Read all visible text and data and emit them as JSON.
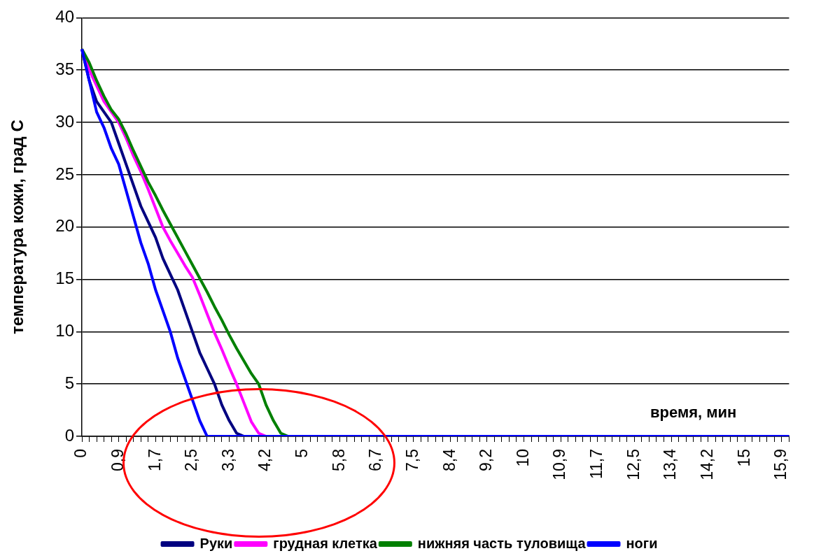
{
  "chart_data": {
    "type": "line",
    "ylabel": "температура кожи, град С",
    "xlabel": "время, мин",
    "categories": [
      "0",
      null,
      null,
      null,
      null,
      "0,9",
      null,
      null,
      null,
      null,
      "1,7",
      null,
      null,
      null,
      null,
      "2,5",
      null,
      null,
      null,
      null,
      "3,3",
      null,
      null,
      null,
      null,
      "4,2",
      null,
      null,
      null,
      null,
      "5",
      null,
      null,
      null,
      null,
      "5,8",
      null,
      null,
      null,
      null,
      "6,7",
      null,
      null,
      null,
      null,
      "7,5",
      null,
      null,
      null,
      null,
      "8,4",
      null,
      null,
      null,
      null,
      "9,2",
      null,
      null,
      null,
      null,
      "10",
      null,
      null,
      null,
      null,
      "10,9",
      null,
      null,
      null,
      null,
      "11,7",
      null,
      null,
      null,
      null,
      "12,5",
      null,
      null,
      null,
      null,
      "13,4",
      null,
      null,
      null,
      null,
      "14,2",
      null,
      null,
      null,
      null,
      "15",
      null,
      null,
      null,
      null,
      "15,9",
      null
    ],
    "series": [
      {
        "name": "Руки",
        "color": "#000080",
        "values": [
          37,
          34,
          32,
          31,
          30,
          28,
          26,
          24,
          22,
          20.5,
          19,
          17,
          15.5,
          14,
          12,
          10,
          8,
          6.5,
          5,
          3,
          1.5,
          0.3,
          0,
          null,
          null,
          null,
          null,
          null,
          null,
          null,
          null,
          null,
          null,
          null,
          null,
          null,
          null,
          null,
          null,
          null,
          null,
          null,
          null,
          null,
          null,
          null,
          null,
          null,
          null,
          null,
          null,
          null,
          null,
          null,
          null,
          null,
          null,
          null,
          null,
          null,
          null,
          null,
          null,
          null,
          null,
          null,
          null,
          null,
          null,
          null,
          null,
          null,
          null,
          null,
          null,
          null,
          null,
          null,
          null,
          null,
          null,
          null,
          null,
          null,
          null,
          null,
          null,
          null,
          null,
          null,
          null,
          null,
          null,
          null,
          null,
          null,
          null
        ]
      },
      {
        "name": "грудная клетка",
        "color": "#ff00ff",
        "values": [
          37,
          35,
          33.5,
          32,
          31,
          30,
          28.5,
          26.8,
          25.3,
          23.6,
          21.8,
          20,
          18.7,
          17.5,
          16.3,
          15.2,
          13.5,
          11.7,
          9.9,
          8.3,
          6.6,
          5,
          3.2,
          1.4,
          0.3,
          0,
          null,
          null,
          null,
          null,
          null,
          null,
          null,
          null,
          null,
          null,
          null,
          null,
          null,
          null,
          null,
          null,
          null,
          null,
          null,
          null,
          null,
          null,
          null,
          null,
          null,
          null,
          null,
          null,
          null,
          null,
          null,
          null,
          null,
          null,
          null,
          null,
          null,
          null,
          null,
          null,
          null,
          null,
          null,
          null,
          null,
          null,
          null,
          null,
          null,
          null,
          null,
          null,
          null,
          null,
          null,
          null,
          null,
          null,
          null,
          null,
          null,
          null,
          null,
          null,
          null,
          null,
          null,
          null,
          null,
          null,
          null
        ]
      },
      {
        "name": "нижняя часть туловища",
        "color": "#008000",
        "values": [
          37,
          35.7,
          34,
          32.5,
          31.2,
          30.3,
          28.9,
          27.3,
          25.8,
          24.3,
          23,
          21.6,
          20.3,
          19,
          17.7,
          16.4,
          15.1,
          13.8,
          12.4,
          11.1,
          9.7,
          8.4,
          7.2,
          6,
          5,
          3,
          1.5,
          0.3,
          0,
          null,
          null,
          null,
          null,
          null,
          null,
          null,
          null,
          null,
          null,
          null,
          null,
          null,
          null,
          null,
          null,
          null,
          null,
          null,
          null,
          null,
          null,
          null,
          null,
          null,
          null,
          null,
          null,
          null,
          null,
          null,
          null,
          null,
          null,
          null,
          null,
          null,
          null,
          null,
          null,
          null,
          null,
          null,
          null,
          null,
          null,
          null,
          null,
          null,
          null,
          null,
          null,
          null,
          null,
          null,
          null,
          null,
          null,
          null,
          null,
          null,
          null,
          null,
          null,
          null,
          null,
          null,
          null
        ]
      },
      {
        "name": "ноги",
        "color": "#0000ff",
        "values": [
          37,
          34,
          31,
          29.5,
          27.5,
          26,
          23.5,
          21,
          18.5,
          16.5,
          14,
          12,
          10,
          7.5,
          5.5,
          3.5,
          1.5,
          0,
          0,
          0,
          0,
          0,
          0,
          0,
          0,
          0,
          0,
          0,
          0,
          0,
          0,
          0,
          0,
          0,
          0,
          0,
          0,
          0,
          0,
          0,
          0,
          0,
          0,
          0,
          0,
          0,
          0,
          0,
          0,
          0,
          0,
          0,
          0,
          0,
          0,
          0,
          0,
          0,
          0,
          0,
          0,
          0,
          0,
          0,
          0,
          0,
          0,
          0,
          0,
          0,
          0,
          0,
          0,
          0,
          0,
          0,
          0,
          0,
          0,
          0,
          0,
          0,
          0,
          0,
          0,
          0,
          0,
          0,
          0,
          0,
          0,
          0,
          0,
          0,
          0,
          0,
          0
        ]
      }
    ],
    "ylim": [
      0,
      40
    ],
    "yticks": [
      0,
      5,
      10,
      15,
      20,
      25,
      30,
      35,
      40
    ],
    "grid": "y",
    "legend": "bottom",
    "marker": "none",
    "line_style": "solid"
  }
}
